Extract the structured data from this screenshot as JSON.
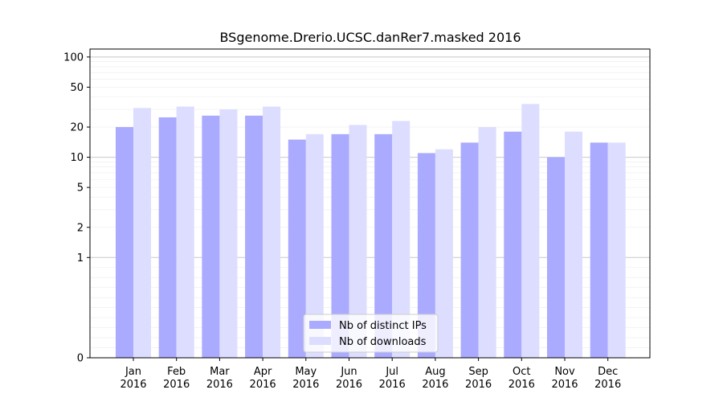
{
  "chart_data": {
    "type": "bar",
    "title": "BSgenome.Drerio.UCSC.danRer7.masked 2016",
    "xlabel": "",
    "ylabel": "",
    "yscale": "symlog",
    "ylim": [
      0,
      120
    ],
    "yticks": [
      0,
      1,
      2,
      5,
      10,
      20,
      50,
      100
    ],
    "grid": true,
    "legend_position": "bottom-center",
    "categories": [
      [
        "Jan",
        "2016"
      ],
      [
        "Feb",
        "2016"
      ],
      [
        "Mar",
        "2016"
      ],
      [
        "Apr",
        "2016"
      ],
      [
        "May",
        "2016"
      ],
      [
        "Jun",
        "2016"
      ],
      [
        "Jul",
        "2016"
      ],
      [
        "Aug",
        "2016"
      ],
      [
        "Sep",
        "2016"
      ],
      [
        "Oct",
        "2016"
      ],
      [
        "Nov",
        "2016"
      ],
      [
        "Dec",
        "2016"
      ]
    ],
    "series": [
      {
        "name": "Nb of distinct IPs",
        "color": "#aaaaff",
        "values": [
          20,
          25,
          26,
          26,
          15,
          17,
          17,
          11,
          14,
          18,
          10,
          14
        ]
      },
      {
        "name": "Nb of downloads",
        "color": "#ddddff",
        "values": [
          31,
          32,
          30,
          32,
          17,
          21,
          23,
          12,
          20,
          34,
          18,
          14
        ]
      }
    ]
  }
}
